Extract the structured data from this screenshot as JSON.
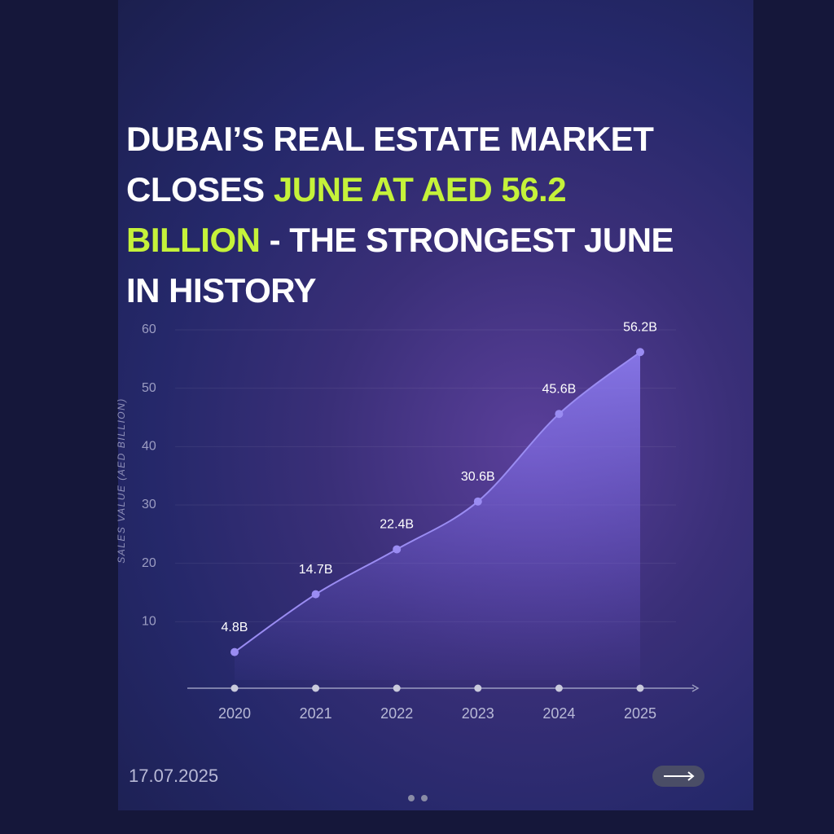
{
  "title": [
    {
      "text": "DUBAI’S REAL ESTATE MARKET CLOSES ",
      "color": "#ffffff"
    },
    {
      "text": "JUNE AT AED 56.2 BILLION",
      "color": "#c5f23a"
    },
    {
      "text": " - THE STRONGEST JUNE IN HISTORY",
      "color": "#ffffff"
    }
  ],
  "date": "17.07.2025",
  "chart_data": {
    "type": "area",
    "y_label": "SALES VALUE (AED BILLION)",
    "categories": [
      "2020",
      "2021",
      "2022",
      "2023",
      "2024",
      "2025"
    ],
    "values": [
      4.8,
      14.7,
      22.4,
      30.6,
      45.6,
      56.2
    ],
    "value_labels": [
      "4.8B",
      "14.7B",
      "22.4B",
      "30.6B",
      "45.6B",
      "56.2B"
    ],
    "color": "#9a8cf2",
    "ylim": [
      0,
      60
    ],
    "yticks": [
      10,
      20,
      30,
      40,
      50,
      60
    ],
    "grid": true
  }
}
